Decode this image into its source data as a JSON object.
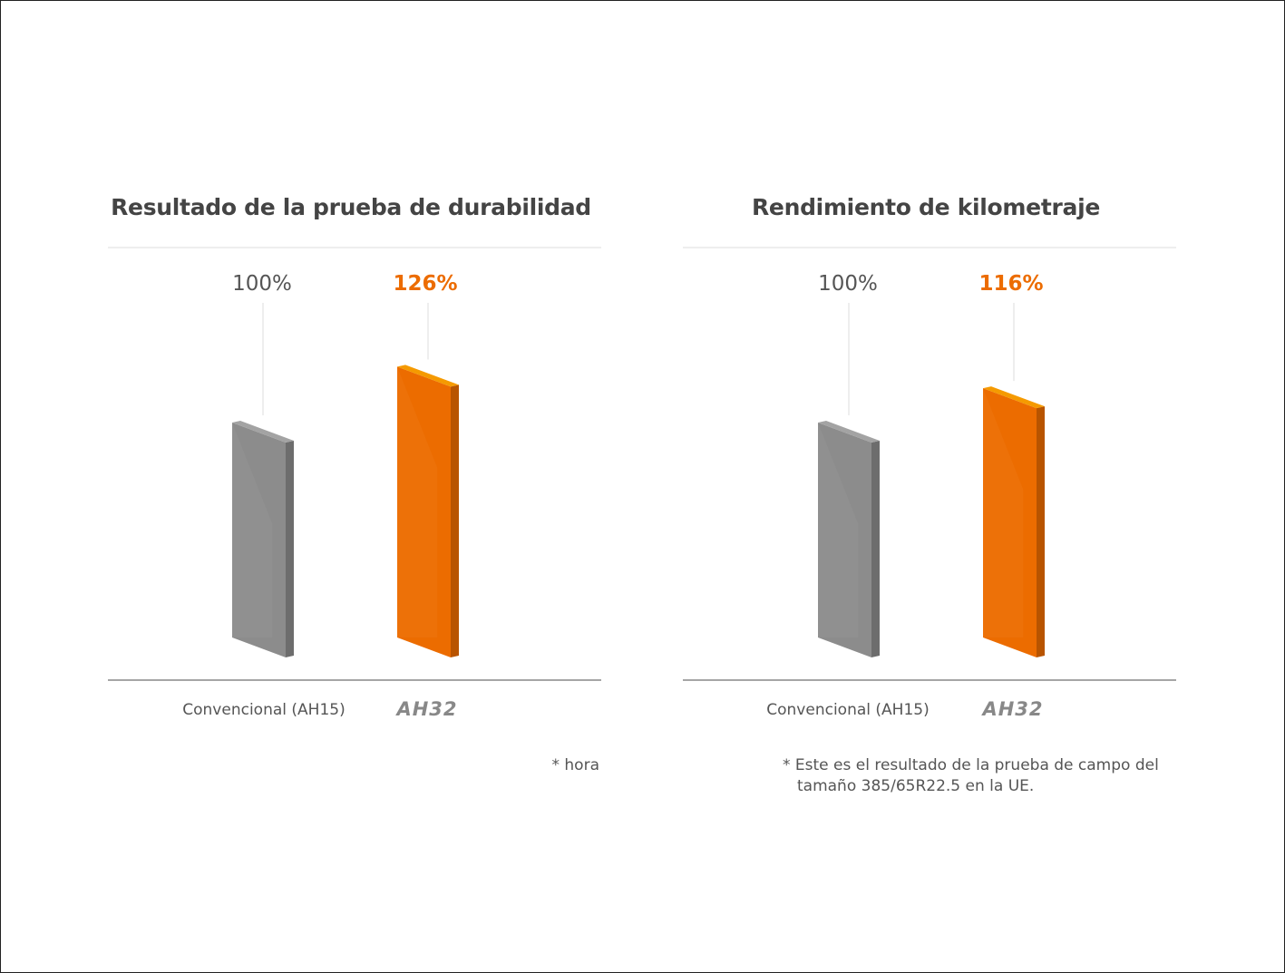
{
  "chart_data": [
    {
      "type": "bar",
      "title": "Resultado de la prueba de durabilidad",
      "categories": [
        "Convencional (AH15)",
        "AH32"
      ],
      "values": [
        100,
        126
      ],
      "value_labels": [
        "100%",
        "126%"
      ],
      "colors": [
        "#8c8c8c",
        "#ec6c00"
      ],
      "note": "* hora"
    },
    {
      "type": "bar",
      "title": "Rendimiento de kilometraje",
      "categories": [
        "Convencional (AH15)",
        "AH32"
      ],
      "values": [
        100,
        116
      ],
      "value_labels": [
        "100%",
        "116%"
      ],
      "colors": [
        "#8c8c8c",
        "#ec6c00"
      ],
      "note": "* Este es el resultado de la prueba de campo del tamaño 385/65R22.5 en la UE."
    }
  ]
}
